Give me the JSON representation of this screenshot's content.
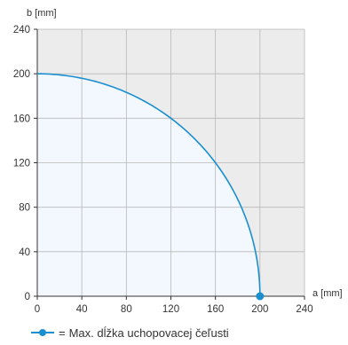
{
  "chart_data": {
    "type": "line",
    "xlabel": "a [mm]",
    "ylabel": "b [mm]",
    "xlim": [
      0,
      240
    ],
    "ylim": [
      0,
      240
    ],
    "xticks": [
      0,
      40,
      80,
      120,
      160,
      200,
      240
    ],
    "yticks": [
      0,
      40,
      80,
      120,
      160,
      200,
      240
    ],
    "grid": true,
    "legend_position": "bottom-left",
    "series": [
      {
        "name": "Max. dĺžka uchopovacej čeľusti",
        "color": "#1a8fd0",
        "fill": "#f2f8fd",
        "marker_at": [
          200,
          0
        ],
        "x": [
          0,
          20,
          40,
          60,
          80,
          100,
          120,
          140,
          160,
          180,
          200
        ],
        "y": [
          200,
          199,
          196,
          191,
          183,
          173,
          160,
          143,
          120,
          87,
          0
        ]
      }
    ]
  },
  "legend": {
    "equals": "=",
    "label": "Max. dĺžka uchopovacej čeľusti"
  }
}
